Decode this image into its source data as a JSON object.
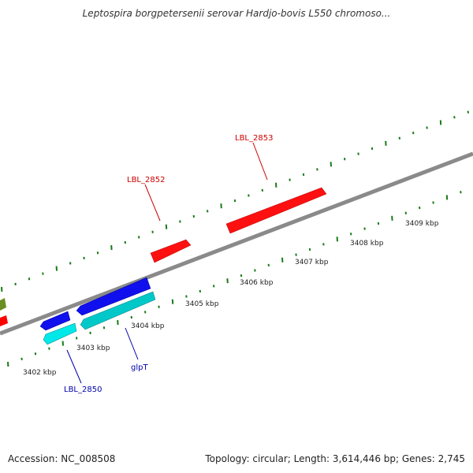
{
  "title": "Leptospira borgpetersenii serovar Hardjo-bovis L550 chromoso...",
  "footer": {
    "accession": "Accession: NC_008508",
    "summary": "Topology: circular; Length: 3,614,446 bp; Genes: 2,745"
  },
  "colors": {
    "backbone": "#8a8a8a",
    "ticks": "#1a7a1a",
    "forward_gene": "#ff0000",
    "reverse_gene": "#0000ee",
    "cyan_gene": "#00cccc",
    "label_red": "#cc0000",
    "label_blue": "#0000aa"
  },
  "ticks": [
    {
      "label": "3402 kbp"
    },
    {
      "label": "3403 kbp"
    },
    {
      "label": "3404 kbp"
    },
    {
      "label": "3405 kbp"
    },
    {
      "label": "3406 kbp"
    },
    {
      "label": "3407 kbp"
    },
    {
      "label": "3408 kbp"
    },
    {
      "label": "3409 kbp"
    }
  ],
  "genes": [
    {
      "label": "LBL_2853",
      "strand": "forward"
    },
    {
      "label": "LBL_2852",
      "strand": "forward"
    },
    {
      "label": "glpT",
      "strand": "reverse"
    },
    {
      "label": "LBL_2850",
      "strand": "reverse"
    }
  ]
}
